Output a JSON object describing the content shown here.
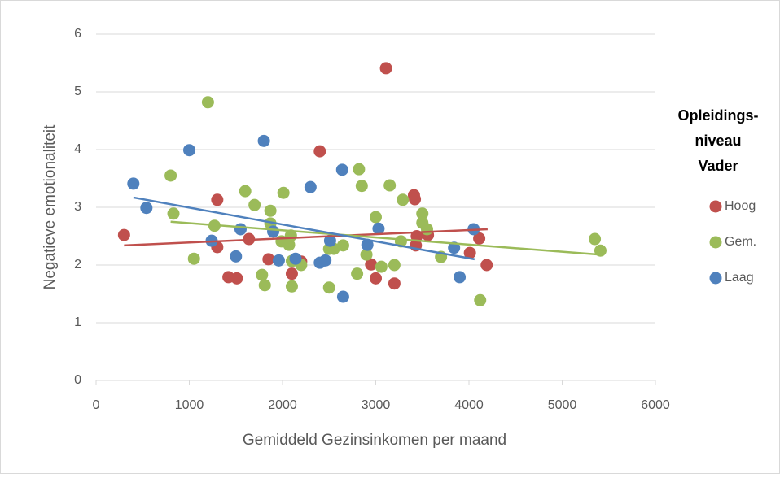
{
  "chart_data": {
    "type": "scatter",
    "xlabel": "Gemiddeld Gezinsinkomen per maand",
    "ylabel": "Negatieve emotionaliteit",
    "legend_title": [
      "Opleidings-",
      "niveau",
      "Vader"
    ],
    "legend": "right",
    "grid": true,
    "xlim": [
      0,
      6000
    ],
    "xticks": [
      0,
      1000,
      2000,
      3000,
      4000,
      5000,
      6000
    ],
    "ylim": [
      0,
      6
    ],
    "yticks": [
      0,
      1,
      2,
      3,
      4,
      5,
      6
    ],
    "series": [
      {
        "name": "Hoog",
        "color": "#c0504d",
        "x": [
          300,
          1300,
          1300,
          1640,
          1420,
          1510,
          1850,
          2100,
          2400,
          3110,
          3410,
          3420,
          3430,
          3440,
          3560,
          2950,
          3000,
          3200,
          4010,
          4110,
          4190,
          2200
        ],
        "y": [
          2.52,
          3.13,
          2.31,
          2.45,
          1.79,
          1.77,
          2.1,
          1.85,
          3.97,
          5.41,
          3.21,
          3.14,
          2.34,
          2.5,
          2.52,
          2.01,
          1.77,
          1.68,
          2.21,
          2.46,
          2.0,
          2.06
        ],
        "trendline": {
          "x": [
            300,
            4200
          ],
          "y": [
            2.34,
            2.62
          ]
        }
      },
      {
        "name": "Gem.",
        "color": "#9bbb59",
        "x": [
          800,
          830,
          1050,
          1200,
          1270,
          1600,
          1700,
          1870,
          1870,
          2010,
          1990,
          2070,
          2090,
          1780,
          1810,
          2100,
          2200,
          2100,
          2500,
          2550,
          2650,
          2500,
          2800,
          2820,
          2850,
          2900,
          3000,
          3060,
          3150,
          3200,
          3290,
          3270,
          3500,
          3500,
          3550,
          3700,
          4120,
          5350,
          5410
        ],
        "y": [
          3.55,
          2.89,
          2.11,
          4.82,
          2.68,
          3.28,
          3.04,
          2.94,
          2.72,
          3.25,
          2.41,
          2.35,
          2.51,
          1.83,
          1.65,
          1.63,
          2.0,
          2.07,
          2.28,
          2.28,
          2.34,
          1.61,
          1.85,
          3.66,
          3.37,
          2.18,
          2.83,
          1.97,
          3.38,
          2.0,
          3.13,
          2.41,
          2.89,
          2.73,
          2.62,
          2.14,
          1.39,
          2.45,
          2.25
        ],
        "trendline": {
          "x": [
            800,
            5410
          ],
          "y": [
            2.75,
            2.18
          ]
        }
      },
      {
        "name": "Laag",
        "color": "#4f81bd",
        "x": [
          400,
          540,
          1000,
          1240,
          1550,
          1500,
          1800,
          1900,
          1960,
          2140,
          2300,
          2400,
          2460,
          2510,
          2640,
          2650,
          2910,
          3030,
          3840,
          3900,
          4050
        ],
        "y": [
          3.41,
          2.99,
          3.99,
          2.42,
          2.62,
          2.15,
          4.15,
          2.58,
          2.08,
          2.11,
          3.35,
          2.04,
          2.08,
          2.42,
          3.65,
          1.45,
          2.35,
          2.63,
          2.3,
          1.79,
          2.62
        ],
        "trendline": {
          "x": [
            400,
            4060
          ],
          "y": [
            3.17,
            2.1
          ]
        }
      }
    ]
  }
}
